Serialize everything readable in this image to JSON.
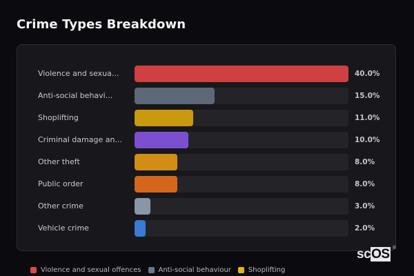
{
  "header": {
    "title": "Crime Types Breakdown"
  },
  "chart_data": {
    "type": "bar",
    "orientation": "horizontal",
    "title": "Crime Types Breakdown",
    "xlabel": "",
    "ylabel": "",
    "xlim": [
      0,
      40
    ],
    "grid": false,
    "legend_position": "bottom",
    "categories": [
      "Violence and sexual offences",
      "Anti-social behaviour",
      "Shoplifting",
      "Criminal damage and arson",
      "Other theft",
      "Public order",
      "Other crime",
      "Vehicle crime"
    ],
    "display_labels": [
      "Violence and sexua...",
      "Anti-social behavi...",
      "Shoplifting",
      "Criminal damage an...",
      "Other theft",
      "Public order",
      "Other crime",
      "Vehicle crime"
    ],
    "values": [
      40.0,
      15.0,
      11.0,
      10.0,
      8.0,
      8.0,
      3.0,
      2.0
    ],
    "value_labels": [
      "40.0%",
      "15.0%",
      "11.0%",
      "10.0%",
      "8.0%",
      "8.0%",
      "3.0%",
      "2.0%"
    ],
    "colors": [
      "#d04040",
      "#5d6878",
      "#c9990f",
      "#7b4fcf",
      "#d48d14",
      "#d4661c",
      "#8a96a8",
      "#3a7bd5"
    ],
    "unit": "%"
  },
  "rows": [
    {
      "label": "Violence and sexua...",
      "value": "40.0%",
      "pct": 100,
      "color": "#d04040"
    },
    {
      "label": "Anti-social behavi...",
      "value": "15.0%",
      "pct": 37.5,
      "color": "#5d6878"
    },
    {
      "label": "Shoplifting",
      "value": "11.0%",
      "pct": 27.5,
      "color": "#c9990f"
    },
    {
      "label": "Criminal damage an...",
      "value": "10.0%",
      "pct": 25,
      "color": "#7b4fcf"
    },
    {
      "label": "Other theft",
      "value": "8.0%",
      "pct": 20,
      "color": "#d48d14"
    },
    {
      "label": "Public order",
      "value": "8.0%",
      "pct": 20,
      "color": "#d4661c"
    },
    {
      "label": "Other crime",
      "value": "3.0%",
      "pct": 7.5,
      "color": "#8a96a8"
    },
    {
      "label": "Vehicle crime",
      "value": "2.0%",
      "pct": 5,
      "color": "#3a7bd5"
    }
  ],
  "legend": [
    {
      "label": "Violence and sexual offences",
      "color": "#e0464a"
    },
    {
      "label": "Anti-social behaviour",
      "color": "#6a778a"
    },
    {
      "label": "Shoplifting",
      "color": "#e6b411"
    }
  ],
  "brand": {
    "prefix": "sc",
    "suffix": "OS",
    "mark": "®"
  }
}
